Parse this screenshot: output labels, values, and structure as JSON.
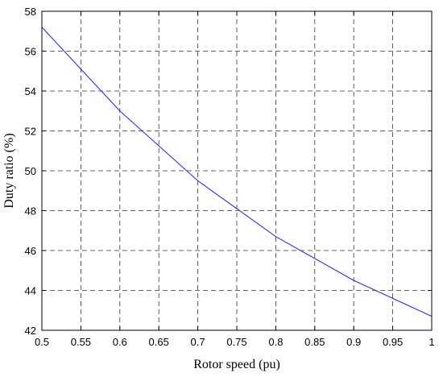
{
  "chart_data": {
    "type": "line",
    "title": "",
    "xlabel": "Rotor speed (pu)",
    "ylabel": "Duty ratio (%)",
    "xlim": [
      0.5,
      1.0
    ],
    "ylim": [
      42,
      58
    ],
    "xticks": [
      0.5,
      0.55,
      0.6,
      0.65,
      0.7,
      0.75,
      0.8,
      0.85,
      0.9,
      0.95,
      1.0
    ],
    "xtick_labels": [
      "0.5",
      "0.55",
      "0.6",
      "0.65",
      "0.7",
      "0.75",
      "0.8",
      "0.85",
      "0.9",
      "0.95",
      "1"
    ],
    "yticks": [
      42,
      44,
      46,
      48,
      50,
      52,
      54,
      56,
      58
    ],
    "ytick_labels": [
      "42",
      "44",
      "46",
      "48",
      "50",
      "52",
      "54",
      "56",
      "58"
    ],
    "grid": true,
    "legend": "none",
    "series": [
      {
        "color": "#2b2bff",
        "x": [
          0.5,
          0.6,
          0.7,
          0.8,
          0.9,
          1.0
        ],
        "y": [
          57.2,
          53.0,
          49.5,
          46.7,
          44.5,
          42.7
        ]
      }
    ]
  }
}
